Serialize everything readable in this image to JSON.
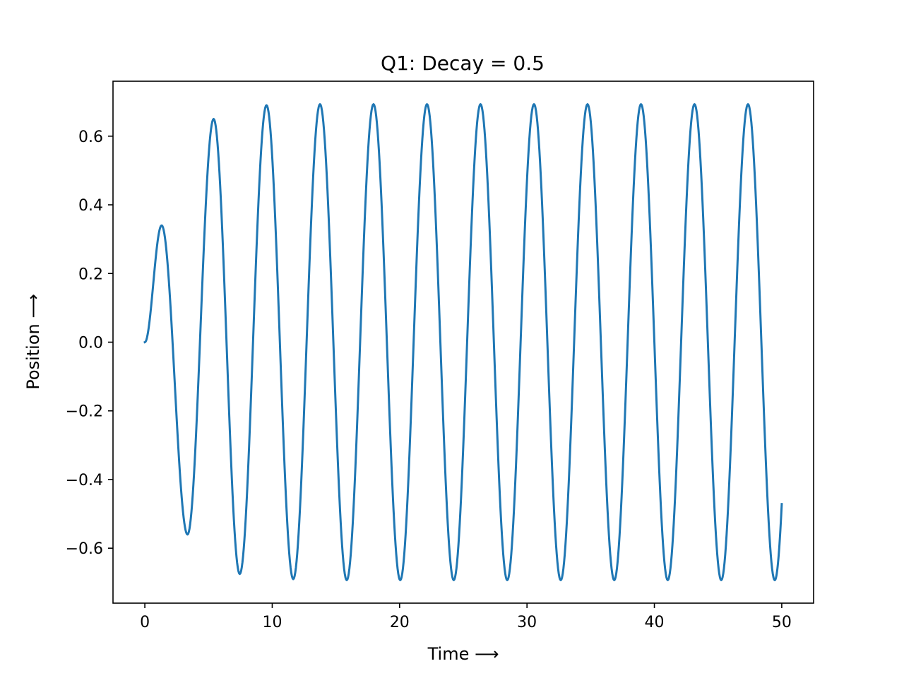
{
  "chart_data": {
    "type": "line",
    "title": "Q1: Decay = 0.5",
    "xlabel": "Time ⟶",
    "ylabel": "Position ⟶",
    "xlim": [
      -2.5,
      52.5
    ],
    "ylim": [
      -0.76,
      0.76
    ],
    "xticks": [
      0,
      10,
      20,
      30,
      40,
      50
    ],
    "xtick_labels": [
      "0",
      "10",
      "20",
      "30",
      "40",
      "50"
    ],
    "yticks": [
      -0.6,
      -0.4,
      -0.2,
      0.0,
      0.2,
      0.4,
      0.6
    ],
    "ytick_labels": [
      "−0.6",
      "−0.4",
      "−0.2",
      "0.0",
      "0.2",
      "0.4",
      "0.6"
    ],
    "grid": false,
    "legend": "none",
    "line_color": "#1f77b4",
    "series": [
      {
        "x": [
          0,
          1.32,
          3.35,
          5.4,
          7.45,
          9.55,
          11.65,
          13.75,
          15.85,
          17.95,
          20.05,
          22.15,
          24.25,
          26.35,
          28.45,
          30.55,
          32.65,
          34.75,
          36.85,
          38.95,
          41.05,
          43.15,
          45.25,
          47.35,
          49.45,
          50
        ],
        "y": [
          0.0,
          0.34,
          -0.56,
          0.65,
          -0.675,
          0.69,
          -0.69,
          0.693,
          -0.693,
          0.693,
          -0.693,
          0.693,
          -0.693,
          0.693,
          -0.693,
          0.693,
          -0.693,
          0.693,
          -0.693,
          0.693,
          -0.693,
          0.693,
          -0.693,
          0.693,
          -0.693,
          -0.36
        ]
      }
    ]
  }
}
